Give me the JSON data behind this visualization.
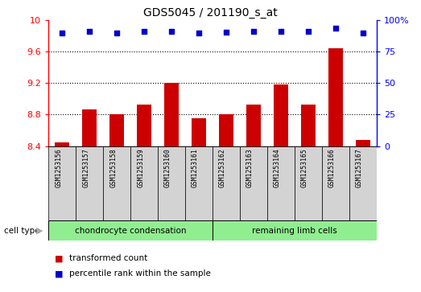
{
  "title": "GDS5045 / 201190_s_at",
  "samples": [
    "GSM1253156",
    "GSM1253157",
    "GSM1253158",
    "GSM1253159",
    "GSM1253160",
    "GSM1253161",
    "GSM1253162",
    "GSM1253163",
    "GSM1253164",
    "GSM1253165",
    "GSM1253166",
    "GSM1253167"
  ],
  "bar_values": [
    8.45,
    8.87,
    8.8,
    8.93,
    9.2,
    8.75,
    8.8,
    8.93,
    9.18,
    8.93,
    9.65,
    8.48
  ],
  "dot_values": [
    90,
    91,
    90,
    91,
    91.5,
    90,
    90.5,
    91,
    91.5,
    91,
    94,
    90
  ],
  "bar_color": "#cc0000",
  "dot_color": "#0000cc",
  "ylim_left": [
    8.4,
    10.0
  ],
  "ylim_right": [
    0,
    100
  ],
  "yticks_left": [
    8.4,
    8.8,
    9.2,
    9.6,
    10.0
  ],
  "yticks_right": [
    0,
    25,
    50,
    75,
    100
  ],
  "ytick_labels_left": [
    "8.4",
    "8.8",
    "9.2",
    "9.6",
    "10"
  ],
  "ytick_labels_right": [
    "0",
    "25",
    "50",
    "75",
    "100%"
  ],
  "grid_lines": [
    9.6,
    9.2,
    8.8
  ],
  "group1_label": "chondrocyte condensation",
  "group2_label": "remaining limb cells",
  "group1_count": 6,
  "group2_count": 6,
  "cell_type_label": "cell type",
  "legend_bar_label": "transformed count",
  "legend_dot_label": "percentile rank within the sample",
  "group_color": "#90ee90",
  "bar_bottom": 8.4,
  "label_bg_color": "#d3d3d3"
}
